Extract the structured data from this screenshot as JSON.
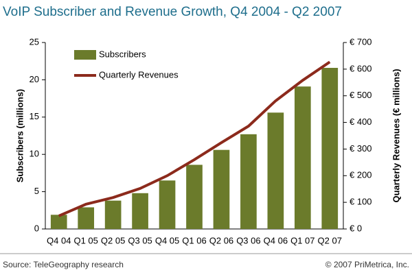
{
  "chart_data": {
    "type": "bar",
    "title": "VoIP Subscriber and Revenue Growth, Q4 2004 - Q2 2007",
    "categories": [
      "Q4 04",
      "Q1 05",
      "Q2 05",
      "Q3 05",
      "Q4 05",
      "Q1 06",
      "Q2 06",
      "Q3 06",
      "Q4 06",
      "Q1 07",
      "Q2 07"
    ],
    "series": [
      {
        "name": "Subscribers",
        "type": "bar",
        "color": "#6b7b2b",
        "values": [
          1.9,
          2.9,
          3.8,
          4.8,
          6.5,
          8.6,
          10.6,
          12.7,
          15.6,
          19.1,
          21.6
        ]
      },
      {
        "name": "Quarterly Revenues",
        "type": "line",
        "axis": "y2",
        "color": "#8c2a1c",
        "values": [
          49,
          93,
          118,
          152,
          200,
          260,
          324,
          386,
          481,
          558,
          627
        ]
      }
    ],
    "ylabel": "Subscribers (millions)",
    "y2label": "Quarterly Revenues (€ millions)",
    "ylim": [
      0,
      25
    ],
    "yticks": [
      0,
      5,
      10,
      15,
      20,
      25
    ],
    "y2lim": [
      0,
      700
    ],
    "y2ticks": [
      {
        "value": 0,
        "label": "€ 0"
      },
      {
        "value": 100,
        "label": "€ 100"
      },
      {
        "value": 200,
        "label": "€ 200"
      },
      {
        "value": 300,
        "label": "€ 300"
      },
      {
        "value": 400,
        "label": "€ 400"
      },
      {
        "value": 500,
        "label": "€ 500"
      },
      {
        "value": 600,
        "label": "€ 600"
      },
      {
        "value": 700,
        "label": "€ 700"
      }
    ],
    "legend": "upper left",
    "grid": false,
    "source": "Source: TeleGeography research",
    "credit": "© 2007 PriMetrica, Inc."
  }
}
